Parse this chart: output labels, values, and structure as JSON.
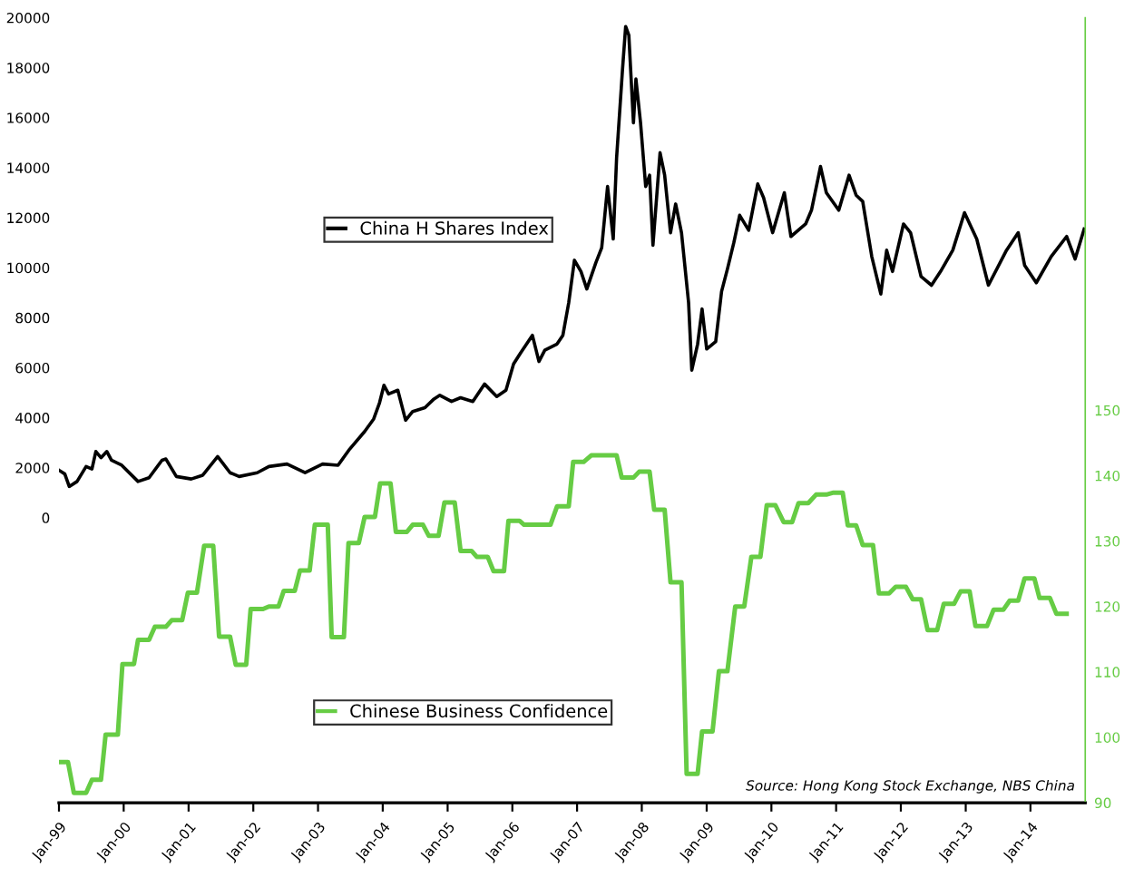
{
  "chart_data": {
    "type": "line",
    "series": [
      {
        "name": "China H Shares Index",
        "color": "#000000",
        "x": [
          "1999-01-01",
          "1999-02-03",
          "1999-02-28",
          "1999-04-13",
          "1999-06-03",
          "1999-07-06",
          "1999-07-28",
          "1999-08-26",
          "1999-09-28",
          "1999-10-24",
          "1999-12-21",
          "2000-03-22",
          "2000-05-23",
          "2000-08-04",
          "2000-08-26",
          "2000-10-24",
          "2001-01-16",
          "2001-03-22",
          "2001-06-14",
          "2001-08-23",
          "2001-10-13",
          "2002-01-23",
          "2002-03-30",
          "2002-07-10",
          "2002-10-20",
          "2003-01-27",
          "2003-04-24",
          "2003-06-29",
          "2003-09-21",
          "2003-11-11",
          "2003-12-14",
          "2004-01-08",
          "2004-02-03",
          "2004-03-26",
          "2004-05-09",
          "2004-06-18",
          "2004-08-26",
          "2004-10-16",
          "2004-11-18",
          "2005-01-23",
          "2005-03-15",
          "2005-05-23",
          "2005-07-28",
          "2005-10-05",
          "2005-11-26",
          "2006-01-08",
          "2006-02-17",
          "2006-04-24",
          "2006-05-31",
          "2006-07-03",
          "2006-09-10",
          "2006-10-13",
          "2006-11-15",
          "2006-12-17",
          "2007-01-23",
          "2007-02-25",
          "2007-04-17",
          "2007-05-20",
          "2007-06-22",
          "2007-07-24",
          "2007-08-12",
          "2007-09-14",
          "2007-10-02",
          "2007-10-20",
          "2007-11-15",
          "2007-11-29",
          "2007-12-25",
          "2008-01-23",
          "2008-02-14",
          "2008-03-04",
          "2008-04-13",
          "2008-05-09",
          "2008-06-11",
          "2008-07-10",
          "2008-08-12",
          "2008-09-21",
          "2008-10-09",
          "2008-11-11",
          "2008-12-06",
          "2009-01-01",
          "2009-02-21",
          "2009-03-26",
          "2009-04-28",
          "2009-06-03",
          "2009-07-06",
          "2009-08-26",
          "2009-10-16",
          "2009-11-18",
          "2010-01-08",
          "2010-03-15",
          "2010-04-21",
          "2010-07-13",
          "2010-08-15",
          "2010-10-05",
          "2010-11-07",
          "2011-01-16",
          "2011-03-15",
          "2011-04-24",
          "2011-05-31",
          "2011-07-21",
          "2011-09-10",
          "2011-10-13",
          "2011-11-15",
          "2012-01-16",
          "2012-02-25",
          "2012-04-24",
          "2012-06-22",
          "2012-08-12",
          "2012-10-20",
          "2012-12-25",
          "2013-03-04",
          "2013-05-09",
          "2013-08-19",
          "2013-10-24",
          "2013-11-29",
          "2014-02-03",
          "2014-04-28",
          "2014-07-24",
          "2014-09-10",
          "2014-10-31"
        ],
        "values": [
          1900,
          1750,
          1250,
          1450,
          2050,
          1950,
          2650,
          2400,
          2650,
          2300,
          2100,
          1450,
          1600,
          2300,
          2350,
          1650,
          1550,
          1700,
          2450,
          1800,
          1650,
          1800,
          2050,
          2150,
          1800,
          2150,
          2100,
          2750,
          3450,
          3950,
          4600,
          5300,
          4950,
          5100,
          3900,
          4250,
          4400,
          4750,
          4900,
          4650,
          4800,
          4650,
          5350,
          4850,
          5100,
          6150,
          6600,
          7300,
          6250,
          6700,
          6950,
          7300,
          8600,
          10300,
          9850,
          9150,
          10200,
          10800,
          13250,
          11150,
          14400,
          17900,
          19650,
          19300,
          15800,
          17550,
          15800,
          13250,
          13700,
          10900,
          14600,
          13700,
          11400,
          12550,
          11400,
          8600,
          5900,
          6950,
          8350,
          6750,
          7050,
          9050,
          9950,
          11000,
          12100,
          11500,
          13350,
          12800,
          11400,
          13000,
          11250,
          11750,
          12300,
          14050,
          13000,
          12300,
          13700,
          12900,
          12650,
          10450,
          8950,
          10700,
          9850,
          11750,
          11400,
          9650,
          9300,
          9850,
          10700,
          12200,
          11150,
          9300,
          10700,
          11400,
          10100,
          9400,
          10450,
          11250,
          10350,
          11550
        ]
      },
      {
        "name": "Chinese Business Confidence",
        "color": "#66cc44",
        "axis": "y2",
        "x": [
          "1999-01-01",
          "1999-02-21",
          "1999-03-26",
          "1999-06-03",
          "1999-07-06",
          "1999-08-26",
          "1999-09-21",
          "1999-11-29",
          "1999-12-25",
          "2000-02-28",
          "2000-03-22",
          "2000-05-23",
          "2000-06-25",
          "2000-08-26",
          "2000-09-28",
          "2000-11-26",
          "2000-12-28",
          "2001-02-17",
          "2001-03-30",
          "2001-05-20",
          "2001-06-22",
          "2001-08-23",
          "2001-09-24",
          "2001-11-22",
          "2001-12-17",
          "2002-02-25",
          "2002-03-30",
          "2002-05-23",
          "2002-06-22",
          "2002-08-23",
          "2002-09-21",
          "2002-11-15",
          "2002-12-14",
          "2003-02-25",
          "2003-03-19",
          "2003-05-27",
          "2003-06-22",
          "2003-08-19",
          "2003-09-21",
          "2003-11-18",
          "2003-12-17",
          "2004-02-14",
          "2004-03-15",
          "2004-05-16",
          "2004-06-18",
          "2004-08-15",
          "2004-09-17",
          "2004-11-11",
          "2004-12-14",
          "2005-02-10",
          "2005-03-15",
          "2005-05-16",
          "2005-06-14",
          "2005-08-15",
          "2005-09-17",
          "2005-11-15",
          "2005-12-10",
          "2006-02-10",
          "2006-03-08",
          "2006-08-04",
          "2006-09-10",
          "2006-11-15",
          "2006-12-10",
          "2007-02-07",
          "2007-03-22",
          "2007-08-12",
          "2007-09-10",
          "2007-11-15",
          "2007-12-17",
          "2008-02-14",
          "2008-03-11",
          "2008-05-09",
          "2008-06-11",
          "2008-08-12",
          "2008-09-10",
          "2008-11-11",
          "2008-12-06",
          "2009-02-03",
          "2009-03-11",
          "2009-04-28",
          "2009-06-11",
          "2009-08-01",
          "2009-09-10",
          "2009-10-31",
          "2009-12-06",
          "2010-01-23",
          "2010-03-11",
          "2010-04-28",
          "2010-06-03",
          "2010-07-28",
          "2010-09-10",
          "2010-11-07",
          "2010-12-17",
          "2011-02-07",
          "2011-03-08",
          "2011-04-24",
          "2011-05-31",
          "2011-07-28",
          "2011-08-30",
          "2011-10-27",
          "2011-12-03",
          "2012-01-30",
          "2012-03-08",
          "2012-04-24",
          "2012-05-31",
          "2012-07-24",
          "2012-08-30",
          "2012-10-27",
          "2012-12-03",
          "2013-01-23",
          "2013-02-25",
          "2013-05-01",
          "2013-06-07",
          "2013-08-01",
          "2013-09-06",
          "2013-10-24",
          "2013-11-29",
          "2014-01-23",
          "2014-02-21",
          "2014-04-21",
          "2014-05-27",
          "2014-07-24"
        ],
        "values": [
          96.2,
          96.2,
          91.5,
          91.5,
          93.5,
          93.5,
          100.4,
          100.4,
          111.2,
          111.2,
          114.9,
          114.9,
          116.9,
          116.9,
          117.9,
          117.9,
          122.1,
          122.1,
          129.3,
          129.3,
          115.4,
          115.4,
          111.1,
          111.1,
          119.6,
          119.6,
          120.0,
          120.0,
          122.4,
          122.4,
          125.5,
          125.5,
          132.5,
          132.5,
          115.3,
          115.3,
          129.7,
          129.7,
          133.7,
          133.7,
          138.8,
          138.8,
          131.4,
          131.4,
          132.5,
          132.5,
          130.8,
          130.8,
          135.9,
          135.9,
          128.5,
          128.5,
          127.6,
          127.6,
          125.4,
          125.4,
          133.1,
          133.1,
          132.5,
          132.5,
          135.3,
          135.3,
          142.1,
          142.1,
          143.1,
          143.1,
          139.7,
          139.7,
          140.6,
          140.6,
          134.8,
          134.8,
          123.7,
          123.7,
          94.4,
          94.4,
          100.9,
          100.9,
          110.1,
          110.1,
          120.0,
          120.0,
          127.6,
          127.6,
          135.5,
          135.5,
          132.9,
          132.9,
          135.8,
          135.8,
          137.1,
          137.1,
          137.4,
          137.4,
          132.4,
          132.4,
          129.4,
          129.4,
          122.0,
          122.0,
          123.0,
          123.0,
          121.1,
          121.1,
          116.4,
          116.4,
          120.4,
          120.4,
          122.3,
          122.3,
          117.0,
          117.0,
          119.5,
          119.5,
          120.9,
          120.9,
          124.3,
          124.3,
          121.3,
          121.3,
          118.9,
          118.9
        ]
      }
    ],
    "xlim": [
      "1999-01-01",
      "2014-11-06"
    ],
    "xticks": [
      {
        "value": "1999-01-01",
        "label": "Jan-99"
      },
      {
        "value": "2000-01-01",
        "label": "Jan-00"
      },
      {
        "value": "2001-01-01",
        "label": "Jan-01"
      },
      {
        "value": "2002-01-01",
        "label": "Jan-02"
      },
      {
        "value": "2003-01-01",
        "label": "Jan-03"
      },
      {
        "value": "2004-01-01",
        "label": "Jan-04"
      },
      {
        "value": "2005-01-01",
        "label": "Jan-05"
      },
      {
        "value": "2006-01-01",
        "label": "Jan-06"
      },
      {
        "value": "2007-01-01",
        "label": "Jan-07"
      },
      {
        "value": "2008-01-01",
        "label": "Jan-08"
      },
      {
        "value": "2009-01-01",
        "label": "Jan-09"
      },
      {
        "value": "2010-01-01",
        "label": "Jan-10"
      },
      {
        "value": "2011-01-01",
        "label": "Jan-11"
      },
      {
        "value": "2012-01-01",
        "label": "Jan-12"
      },
      {
        "value": "2013-01-01",
        "label": "Jan-13"
      },
      {
        "value": "2014-01-01",
        "label": "Jan-14"
      }
    ],
    "ylim": [
      -11400,
      20000
    ],
    "yticks": [
      0,
      2000,
      4000,
      6000,
      8000,
      10000,
      12000,
      14000,
      16000,
      18000,
      20000
    ],
    "y2lim": [
      90,
      210
    ],
    "y2ticks": [
      90,
      100,
      110,
      120,
      130,
      140,
      150
    ],
    "legend": "center left",
    "grid": false,
    "annotations": [
      "Source: Hong Kong Stock Exchange, NBS China"
    ]
  }
}
